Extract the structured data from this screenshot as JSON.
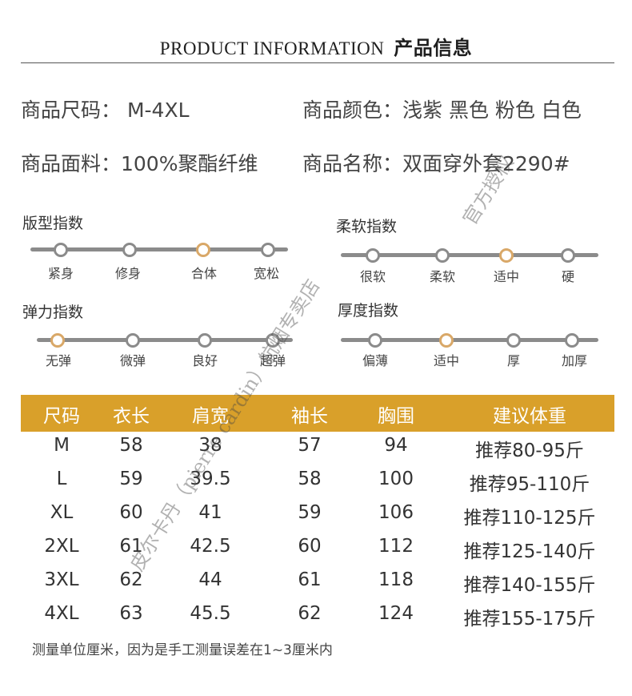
{
  "header": {
    "title_en": "PRODUCT INFORMATION",
    "title_zh": "产品信息"
  },
  "info": {
    "size": "商品尺码：  M-4XL",
    "color": "商品颜色：浅紫 黑色 粉色 白色",
    "fabric": "商品面料：100%聚酯纤维",
    "name": "商品名称：双面穿外套2290#"
  },
  "scales": {
    "fit": {
      "title": "版型指数",
      "labels": [
        "紧身",
        "修身",
        "合体",
        "宽松"
      ],
      "selected": "合体"
    },
    "softness": {
      "title": "柔软指数",
      "labels": [
        "很软",
        "柔软",
        "适中",
        "硬"
      ],
      "selected": "适中"
    },
    "elasticity": {
      "title": "弹力指数",
      "labels": [
        "无弹",
        "微弹",
        "良好",
        "超弹"
      ],
      "selected": "无弹"
    },
    "thickness": {
      "title": "厚度指数",
      "labels": [
        "偏薄",
        "适中",
        "厚",
        "加厚"
      ],
      "selected": "适中"
    }
  },
  "size_table": {
    "headers": [
      "尺码",
      "衣长",
      "肩宽",
      "袖长",
      "胸围",
      "建议体重"
    ],
    "rows": [
      [
        "M",
        "58",
        "38",
        "57",
        "94",
        "推荐80-95斤"
      ],
      [
        "L",
        "59",
        "39.5",
        "58",
        "100",
        "推荐95-110斤"
      ],
      [
        "XL",
        "60",
        "41",
        "59",
        "106",
        "推荐110-125斤"
      ],
      [
        "2XL",
        "61",
        "42.5",
        "60",
        "112",
        "推荐125-140斤"
      ],
      [
        "3XL",
        "62",
        "44",
        "61",
        "118",
        "推荐140-155斤"
      ],
      [
        "4XL",
        "63",
        "45.5",
        "62",
        "124",
        "推荐155-175斤"
      ]
    ]
  },
  "note": "测量单位厘米，因为是手工测量误差在1~3厘米内",
  "watermark": {
    "line1": "皮尔卡丹（pierre cardin）航烟专卖店",
    "line2": "官方授权"
  },
  "colors": {
    "accent": "#d9a02a",
    "active_dot": "#d9a868",
    "track": "#8b8b8b"
  }
}
